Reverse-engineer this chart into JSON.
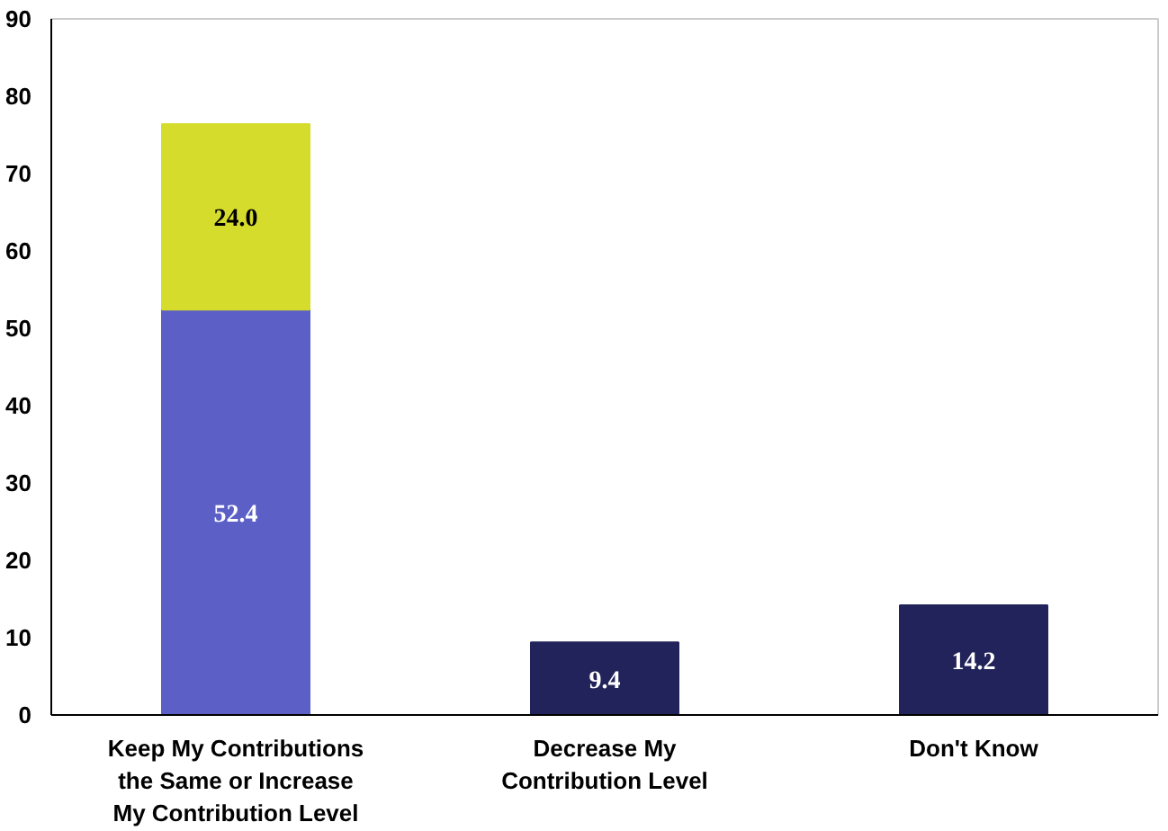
{
  "chart_data": {
    "type": "bar",
    "stacked": true,
    "categories": [
      "Keep My Contributions\nthe Same or Increase\nMy Contribution Level",
      "Decrease My\nContribution Level",
      "Don't Know"
    ],
    "series": [
      {
        "colors": [
          "#5b5fc6",
          "#22235a",
          "#22235a"
        ],
        "values": [
          52.4,
          9.4,
          14.2
        ],
        "value_labels": [
          "52.4",
          "9.4",
          "14.2"
        ]
      },
      {
        "color": "#d5dc2b",
        "values": [
          24.0,
          null,
          null
        ],
        "value_labels": [
          "24.0",
          null,
          null
        ]
      }
    ],
    "ylim": [
      0,
      90
    ],
    "yticks": [
      0,
      10,
      20,
      30,
      40,
      50,
      60,
      70,
      80,
      90
    ],
    "grid": false
  }
}
